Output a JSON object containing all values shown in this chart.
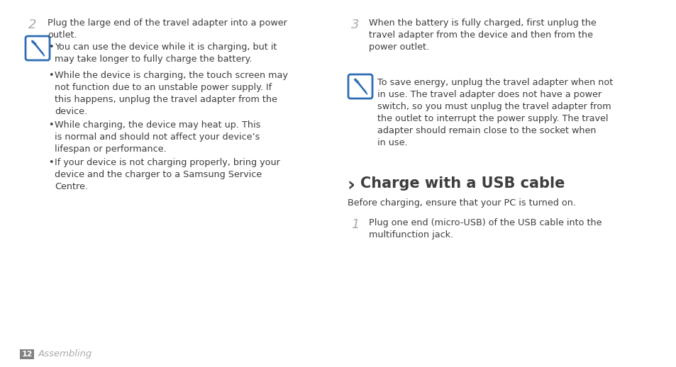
{
  "bg_color": "#ffffff",
  "text_color": "#3d3d3d",
  "page_num": "12",
  "page_label": "Assembling",
  "section_intro": "Before charging, ensure that your PC is turned on.",
  "left_col": {
    "step_num": "2",
    "step_text": "Plug the large end of the travel adapter into a power\noutlet.",
    "note_icon_color": "#2e6db4",
    "bullets": [
      "You can use the device while it is charging, but it\nmay take longer to fully charge the battery.",
      "While the device is charging, the touch screen may\nnot function due to an unstable power supply. If\nthis happens, unplug the travel adapter from the\ndevice.",
      "While charging, the device may heat up. This\nis normal and should not affect your device’s\nlifespan or performance.",
      "If your device is not charging properly, bring your\ndevice and the charger to a Samsung Service\nCentre."
    ]
  },
  "right_col": {
    "step3_num": "3",
    "step3_text": "When the battery is fully charged, first unplug the\ntravel adapter from the device and then from the\npower outlet.",
    "note_icon_color": "#2e6db4",
    "note_text": "To save energy, unplug the travel adapter when not\nin use. The travel adapter does not have a power\nswitch, so you must unplug the travel adapter from\nthe outlet to interrupt the power supply. The travel\nadapter should remain close to the socket when\nin use.",
    "step1_num": "1",
    "step1_text": "Plug one end (micro-USB) of the USB cable into the\nmultifunction jack."
  },
  "font_size_body": 9.2,
  "font_size_step": 13,
  "font_size_section": 15,
  "font_size_footer": 9,
  "font_size_bullet": 9.2
}
